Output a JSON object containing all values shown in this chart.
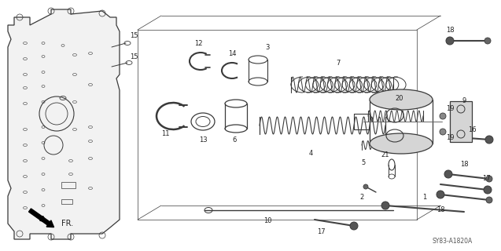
{
  "bg_color": "#ffffff",
  "dc": "#3a3a3a",
  "fig_width": 6.37,
  "fig_height": 3.2,
  "dpi": 100,
  "watermark": "SY83-A1820A",
  "arrow_label": "FR."
}
